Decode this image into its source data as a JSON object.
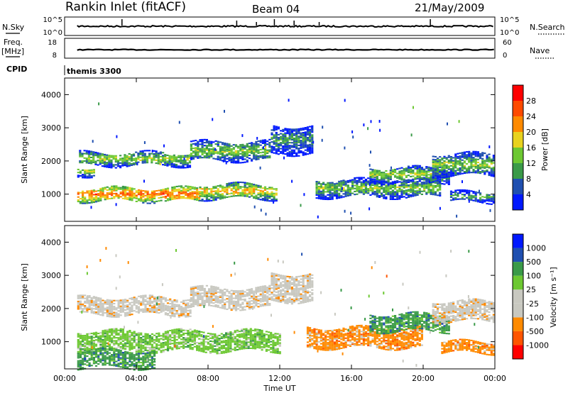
{
  "header": {
    "station": "Rankin Inlet (fitACF)",
    "beam": "Beam 04",
    "date": "21/May/2009"
  },
  "panels": {
    "nsky_label": "N.Sky",
    "nsearch_label": "N.Search",
    "freq_label": "Freq.",
    "freq_unit": "[MHz]",
    "nave_label": "Nave",
    "cpid_label": "CPID",
    "cpid_value": "themis 3300",
    "nsky_ticks": [
      "10^5",
      "10^0"
    ],
    "nsearch_ticks": [
      "10^5",
      "10^0"
    ],
    "freq_ticks": [
      "18",
      "8"
    ],
    "nave_ticks": [
      "60",
      "0"
    ]
  },
  "colors": {
    "power": [
      "#0018ff",
      "#1f4fb0",
      "#3a9a48",
      "#6dc832",
      "#e8d21e",
      "#ff8a00",
      "#ff4a00",
      "#ff0000"
    ],
    "velocity": [
      "#ff0000",
      "#ff5500",
      "#ff8a00",
      "#c8c8c0",
      "#c8c8c0",
      "#6dc832",
      "#3a9a48",
      "#1f4fb0",
      "#0018ff"
    ]
  },
  "chart_data": [
    {
      "type": "heatmap",
      "name": "power",
      "ylabel": "Slant Range [km]",
      "ylim": [
        180,
        4500
      ],
      "yticks": [
        1000,
        2000,
        3000,
        4000
      ],
      "xlim": [
        0,
        24
      ],
      "colorbar": {
        "label": "Power [dB]",
        "ticks": [
          "4",
          "8",
          "12",
          "16",
          "20",
          "24",
          "28"
        ],
        "range": [
          0,
          32
        ]
      },
      "bands": [
        {
          "t0": 0.8,
          "t1": 7.0,
          "r0": 1850,
          "r1": 2250,
          "v": 14
        },
        {
          "t0": 7.0,
          "t1": 11.5,
          "r0": 2000,
          "r1": 2550,
          "v": 13
        },
        {
          "t0": 11.5,
          "t1": 13.8,
          "r0": 2200,
          "r1": 3050,
          "v": 9
        },
        {
          "t0": 0.7,
          "t1": 7.5,
          "r0": 780,
          "r1": 1180,
          "v": 23
        },
        {
          "t0": 7.5,
          "t1": 11.8,
          "r0": 850,
          "r1": 1300,
          "v": 18
        },
        {
          "t0": 14.0,
          "t1": 21.0,
          "r0": 900,
          "r1": 1400,
          "v": 13
        },
        {
          "t0": 17.0,
          "t1": 21.5,
          "r0": 1350,
          "r1": 1800,
          "v": 14
        },
        {
          "t0": 20.5,
          "t1": 24.0,
          "r0": 1550,
          "r1": 2200,
          "v": 13
        },
        {
          "t0": 21.5,
          "t1": 24.0,
          "r0": 750,
          "r1": 1050,
          "v": 10
        },
        {
          "t0": 0.7,
          "t1": 1.6,
          "r0": 1550,
          "r1": 1800,
          "v": 16
        }
      ]
    },
    {
      "type": "heatmap",
      "name": "velocity",
      "ylabel": "Slant Range [km]",
      "xlabel": "Time UT",
      "ylim": [
        180,
        4500
      ],
      "yticks": [
        1000,
        2000,
        3000,
        4000
      ],
      "xlim": [
        0,
        24
      ],
      "xticks": [
        "00:00",
        "04:00",
        "08:00",
        "12:00",
        "16:00",
        "20:00",
        "00:00"
      ],
      "colorbar": {
        "label": "Velocity [m s⁻¹]",
        "ticks": [
          "-1000",
          "-500",
          "-100",
          "-25",
          "25",
          "100",
          "500",
          "1000"
        ]
      },
      "bands": [
        {
          "t0": 0.7,
          "t1": 7.0,
          "r0": 1800,
          "r1": 2300,
          "cls": 3
        },
        {
          "t0": 7.0,
          "t1": 11.5,
          "r0": 2000,
          "r1": 2600,
          "cls": 3
        },
        {
          "t0": 11.5,
          "t1": 13.8,
          "r0": 2200,
          "r1": 3050,
          "cls": 3
        },
        {
          "t0": 0.7,
          "t1": 12.0,
          "r0": 700,
          "r1": 1300,
          "cls": 5
        },
        {
          "t0": 0.7,
          "t1": 5.0,
          "r0": 200,
          "r1": 700,
          "cls": 6
        },
        {
          "t0": 13.5,
          "t1": 20.0,
          "r0": 800,
          "r1": 1400,
          "cls": 2
        },
        {
          "t0": 17.0,
          "t1": 21.5,
          "r0": 1300,
          "r1": 1800,
          "cls": 6
        },
        {
          "t0": 20.5,
          "t1": 24.0,
          "r0": 1600,
          "r1": 2200,
          "cls": 3
        },
        {
          "t0": 21.0,
          "t1": 24.0,
          "r0": 650,
          "r1": 1000,
          "cls": 2
        }
      ]
    }
  ]
}
